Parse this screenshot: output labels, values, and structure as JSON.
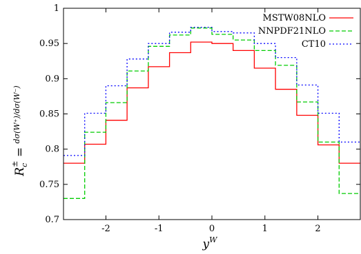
{
  "chart_data": {
    "type": "line",
    "step": true,
    "title": "",
    "xlabel": "y^W",
    "ylabel": "R_c^± = dσ(W⁺)/dσ(W⁻)",
    "xlim": [
      -2.8,
      2.8
    ],
    "ylim": [
      0.7,
      1.0
    ],
    "xticks": [
      -2,
      -1,
      0,
      1,
      2
    ],
    "xtick_labels": [
      "-2",
      "-1",
      "0",
      "1",
      "2"
    ],
    "yticks": [
      0.7,
      0.75,
      0.8,
      0.85,
      0.9,
      0.95,
      1.0
    ],
    "ytick_labels": [
      "0.7",
      "0.75",
      "0.8",
      "0.85",
      "0.9",
      "0.95",
      "1"
    ],
    "grid": false,
    "legend_position": "top-right",
    "bin_edges": [
      -2.8,
      -2.4,
      -2.0,
      -1.6,
      -1.2,
      -0.8,
      -0.4,
      0.0,
      0.4,
      0.8,
      1.2,
      1.6,
      2.0,
      2.4,
      2.8
    ],
    "series": [
      {
        "name": "MSTW08NLO",
        "color": "#ff0000",
        "dash": "solid",
        "values": [
          0.78,
          0.807,
          0.841,
          0.887,
          0.917,
          0.937,
          0.952,
          0.95,
          0.94,
          0.915,
          0.885,
          0.848,
          0.806,
          0.78
        ]
      },
      {
        "name": "NNPDF21NLO",
        "color": "#00cc00",
        "dash": "dashed",
        "values": [
          0.73,
          0.824,
          0.866,
          0.911,
          0.946,
          0.962,
          0.972,
          0.963,
          0.955,
          0.94,
          0.919,
          0.867,
          0.81,
          0.737
        ]
      },
      {
        "name": "CT10",
        "color": "#0000ff",
        "dash": "dotted",
        "values": [
          0.791,
          0.851,
          0.89,
          0.928,
          0.95,
          0.966,
          0.973,
          0.967,
          0.965,
          0.95,
          0.93,
          0.891,
          0.851,
          0.81
        ]
      }
    ]
  }
}
